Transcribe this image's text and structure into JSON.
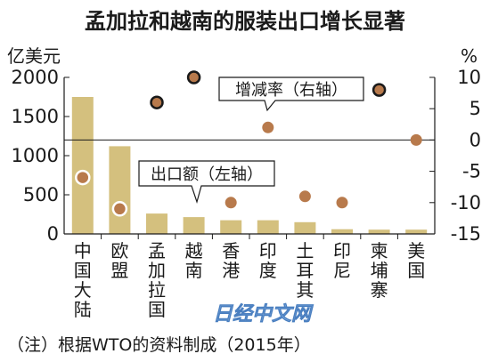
{
  "chart_data": {
    "type": "bar",
    "title": "孟加拉和越南的服装出口增长显著",
    "categories": [
      "中国大陆",
      "欧盟",
      "孟加拉国",
      "越南",
      "香港",
      "印度",
      "土耳其",
      "印尼",
      "柬埔寨",
      "美国"
    ],
    "series": [
      {
        "name": "出口额（左轴）",
        "type": "bar",
        "axis": "left",
        "values": [
          1750,
          1120,
          260,
          215,
          175,
          175,
          150,
          60,
          55,
          55
        ]
      },
      {
        "name": "增减率（右轴）",
        "type": "scatter",
        "axis": "right",
        "values": [
          -6,
          -11,
          6,
          10,
          -10,
          2,
          -9,
          -10,
          8,
          0
        ]
      }
    ],
    "y_left": {
      "unit": "亿美元",
      "range": [
        0,
        2000
      ],
      "ticks": [
        "0",
        "500",
        "1000",
        "1500",
        "2000"
      ]
    },
    "y_right": {
      "unit": "%",
      "range": [
        -15,
        10
      ],
      "ticks": [
        "10",
        "5",
        "0",
        "-5",
        "-10",
        "-15"
      ]
    },
    "note": "（注）根据WTO的资料制成（2015年）",
    "watermark": "日经中文网",
    "colors": {
      "bar": "#d4c07e",
      "dot": "#b87a4c",
      "axis": "#1a1a1a"
    }
  }
}
